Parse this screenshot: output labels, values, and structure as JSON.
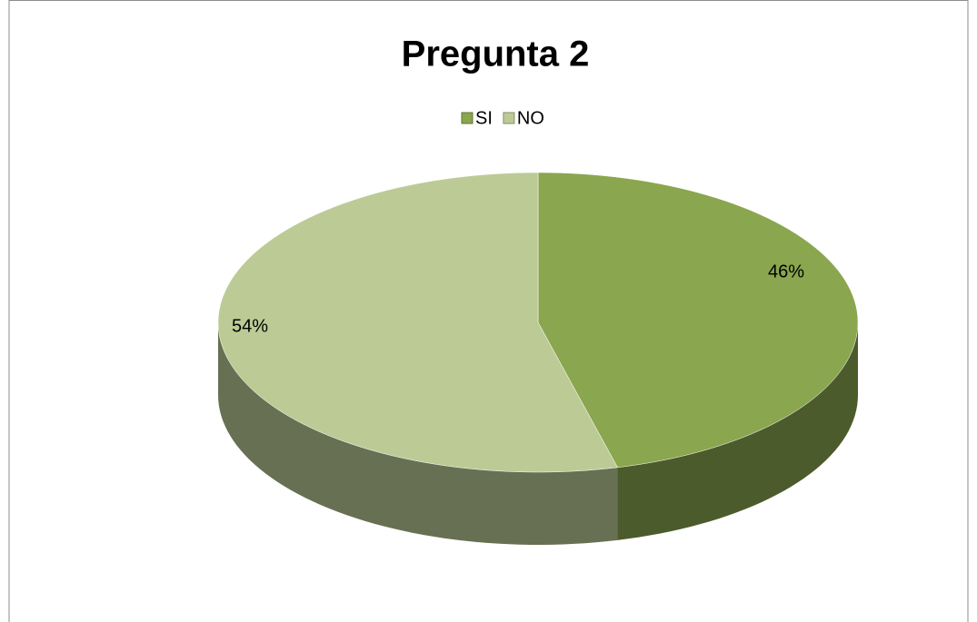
{
  "chart_data": {
    "type": "pie",
    "title": "Pregunta 2",
    "categories": [
      "SI",
      "NO"
    ],
    "values": [
      46,
      54
    ],
    "value_labels": [
      "46%",
      "54%"
    ],
    "colors": [
      "#8aa64e",
      "#bccb96"
    ],
    "legend": "top"
  }
}
